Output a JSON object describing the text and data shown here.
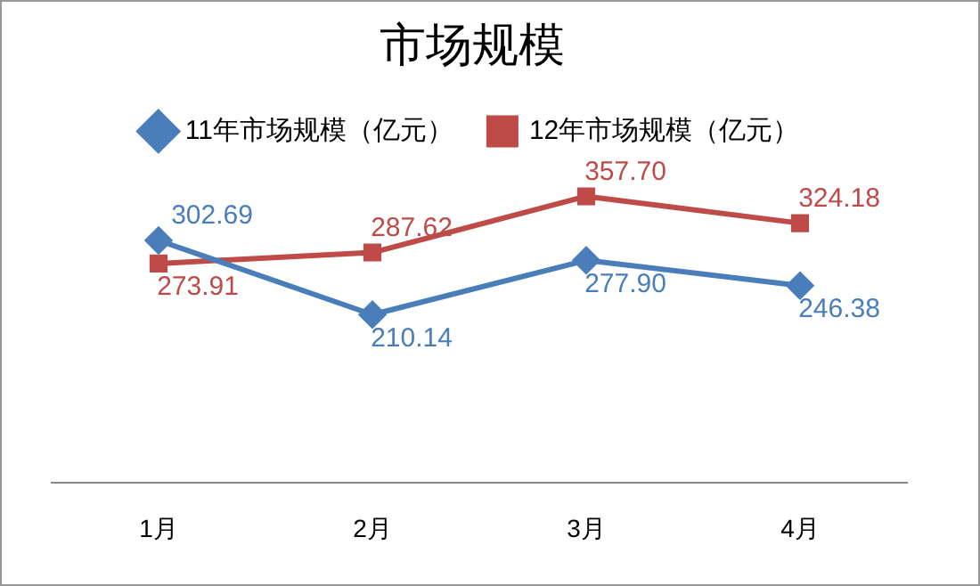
{
  "chart_data": {
    "type": "line",
    "title": "市场规模",
    "categories": [
      "1月",
      "2月",
      "3月",
      "4月"
    ],
    "series": [
      {
        "name": "11年市场规模（亿元）",
        "color": "#4a7ebb",
        "marker": "diamond",
        "values": [
          302.69,
          210.14,
          277.9,
          246.38
        ],
        "value_labels": [
          "302.69",
          "210.14",
          "277.90",
          "246.38"
        ]
      },
      {
        "name": "12年市场规模（亿元）",
        "color": "#be4b48",
        "marker": "square",
        "values": [
          273.91,
          287.62,
          357.7,
          324.18
        ],
        "value_labels": [
          "273.91",
          "287.62",
          "357.70",
          "324.18"
        ]
      }
    ],
    "legend": "top",
    "grid": false,
    "tick_labels": "x"
  }
}
